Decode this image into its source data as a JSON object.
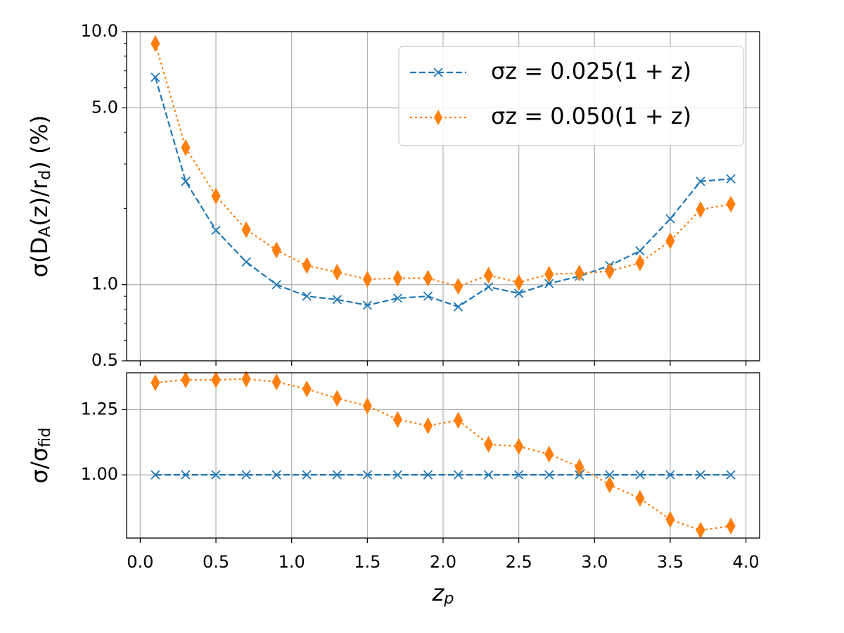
{
  "chart_data": [
    {
      "type": "line",
      "ylabel": [
        {
          "text": "σ(D"
        },
        {
          "text": "A",
          "sub": true
        },
        {
          "text": "(z)/r"
        },
        {
          "text": "d",
          "sub": true
        },
        {
          "text": ") (%)"
        }
      ],
      "x": [
        0.1,
        0.3,
        0.5,
        0.7,
        0.9,
        1.1,
        1.3,
        1.5,
        1.7,
        1.9,
        2.1,
        2.3,
        2.5,
        2.7,
        2.9,
        3.1,
        3.3,
        3.5,
        3.7,
        3.9
      ],
      "series": [
        {
          "name": "σz = 0.025(1 + z)",
          "color": "#1f77b4",
          "marker": "x",
          "dash": "dashed",
          "values": [
            6.6,
            2.56,
            1.64,
            1.23,
            1.0,
            0.9,
            0.873,
            0.829,
            0.884,
            0.9,
            0.818,
            0.98,
            0.924,
            1.01,
            1.08,
            1.19,
            1.36,
            1.82,
            2.56,
            2.62
          ]
        },
        {
          "name": "σz = 0.050(1 + z)",
          "color": "#ff7f0e",
          "marker": "thin-diamond",
          "dash": "dotted",
          "values": [
            8.97,
            3.48,
            2.24,
            1.65,
            1.37,
            1.19,
            1.12,
            1.05,
            1.06,
            1.06,
            0.985,
            1.09,
            1.02,
            1.1,
            1.11,
            1.13,
            1.22,
            1.49,
            1.98,
            2.08
          ]
        }
      ],
      "xlim": [
        -0.09,
        4.09
      ],
      "ylim": [
        0.5,
        10
      ],
      "log_y": true,
      "xticks": [
        0,
        0.5,
        1,
        1.5,
        2,
        2.5,
        3,
        3.5,
        4
      ],
      "show_xtick_labels": false,
      "yticks": [
        0.5,
        {
          "value": 1,
          "label": "1.0"
        },
        {
          "value": 5,
          "label": "5.0"
        },
        {
          "value": 10,
          "label": "10.0"
        }
      ],
      "yminorticks": [
        0.6,
        0.7,
        0.8,
        0.9,
        2,
        3,
        4,
        6,
        7,
        8,
        9
      ],
      "grid": true,
      "legend": "upper right"
    },
    {
      "type": "line",
      "ylabel": [
        {
          "text": "σ/σ"
        },
        {
          "text": "fid",
          "sub": true
        }
      ],
      "xlabel": [
        {
          "text": "z"
        },
        {
          "text": "p",
          "sub": true
        }
      ],
      "x": [
        0.1,
        0.3,
        0.5,
        0.7,
        0.9,
        1.1,
        1.3,
        1.5,
        1.7,
        1.9,
        2.1,
        2.3,
        2.5,
        2.7,
        2.9,
        3.1,
        3.3,
        3.5,
        3.7,
        3.9
      ],
      "series": [
        {
          "color": "#1f77b4",
          "marker": "x",
          "dash": "dashed",
          "values": [
            1,
            1,
            1,
            1,
            1,
            1,
            1,
            1,
            1,
            1,
            1,
            1,
            1,
            1,
            1,
            1,
            1,
            1,
            1,
            1
          ]
        },
        {
          "color": "#ff7f0e",
          "marker": "thin-diamond",
          "dash": "dotted",
          "values": [
            1.353,
            1.364,
            1.364,
            1.367,
            1.356,
            1.329,
            1.293,
            1.264,
            1.212,
            1.188,
            1.209,
            1.117,
            1.109,
            1.079,
            1.03,
            0.962,
            0.91,
            0.829,
            0.788,
            0.804
          ]
        }
      ],
      "xlim": [
        -0.09,
        4.09
      ],
      "ylim": [
        0.758,
        1.391
      ],
      "xticks": [
        {
          "value": 0,
          "label": "0.0"
        },
        0.5,
        {
          "value": 1,
          "label": "1.0"
        },
        1.5,
        {
          "value": 2,
          "label": "2.0"
        },
        2.5,
        {
          "value": 3,
          "label": "3.0"
        },
        3.5,
        {
          "value": 4,
          "label": "4.0"
        }
      ],
      "show_xtick_labels": true,
      "yticks": [
        {
          "value": 1,
          "label": "1.00"
        },
        1.25
      ],
      "grid": true
    }
  ]
}
